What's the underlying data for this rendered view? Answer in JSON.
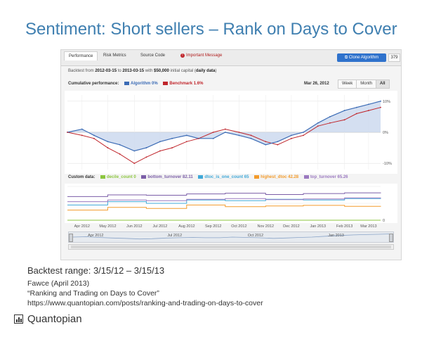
{
  "slide": {
    "title": "Sentiment: Short sellers – Rank on Days to Cover",
    "captions": [
      "Backtest range: 3/15/12 – 3/15/13",
      "Fawce (April 2013)",
      "“Ranking and Trading on Days to Cover”",
      "https://www.quantopian.com/posts/ranking-and-trading-on-days-to-cover"
    ],
    "logo_text": "Quantopian",
    "logo_icon": "bar-chart-icon"
  },
  "screenshot": {
    "tabs": [
      "Performance",
      "Risk Metrics",
      "Source Code",
      "Important Message"
    ],
    "active_tab": "Performance",
    "clone_button": "Clone Algorithm",
    "count_button": "379",
    "backtest_line": {
      "prefix": "Backtest from ",
      "start": "2012-03-15",
      "to": " to ",
      "end": "2013-03-15",
      "with": " with ",
      "capital": "$50,000",
      "capital_suffix": " initial capital (",
      "mode": "daily data",
      "close": ")"
    },
    "cumulative": {
      "label": "Cumulative performance:",
      "algorithm": "Algorithm 0%",
      "benchmark": "Benchmark 1.6%",
      "date": "Mar 26, 2012",
      "range_buttons": [
        "Week",
        "Month",
        "All"
      ],
      "selected_range": "All"
    },
    "custom": {
      "label": "Custom data:",
      "series": [
        {
          "label": "decile_count 0",
          "color": "#8cc63f"
        },
        {
          "label": "bottom_turnover 82.11",
          "color": "#7b5ea7"
        },
        {
          "label": "dtoc_is_one_count 65",
          "color": "#3fa8d8"
        },
        {
          "label": "highest_dtoc 42.28",
          "color": "#f39b2b"
        },
        {
          "label": "top_turnover 65.26",
          "color": "#9b79c0"
        }
      ]
    },
    "x_ticks": [
      "Apr 2012",
      "May 2012",
      "Jun 2012",
      "Jul 2012",
      "Aug 2012",
      "Sep 2012",
      "Oct 2012",
      "Nov 2012",
      "Dec 2012",
      "Jan 2013",
      "Feb 2013",
      "Mar 2013"
    ],
    "navigator_labels": [
      "Apr 2012",
      "Jul 2012",
      "Oct 2012",
      "Jan 2013"
    ],
    "y_ticks": [
      "10%",
      "0%",
      "-10%"
    ],
    "colors": {
      "algorithm": "#3b6bb5",
      "algorithm_fill": "#c9d7ee",
      "benchmark": "#c0262c",
      "accent": "#3f7fb0"
    }
  },
  "chart_data": [
    {
      "type": "line",
      "title": "",
      "xlabel": "",
      "ylabel": "",
      "x": [
        "2012-03-15",
        "2012-04-01",
        "2012-04-15",
        "2012-05-01",
        "2012-05-15",
        "2012-06-01",
        "2012-06-15",
        "2012-07-01",
        "2012-07-15",
        "2012-08-01",
        "2012-08-15",
        "2012-09-01",
        "2012-09-15",
        "2012-10-01",
        "2012-10-15",
        "2012-11-01",
        "2012-11-15",
        "2012-12-01",
        "2012-12-15",
        "2013-01-01",
        "2013-01-15",
        "2013-02-01",
        "2013-02-15",
        "2013-03-01",
        "2013-03-15"
      ],
      "series": [
        {
          "name": "Algorithm",
          "values": [
            0,
            1,
            -1,
            -3,
            -4,
            -6,
            -5,
            -3,
            -2,
            -1,
            -2,
            -2,
            0,
            -1,
            -2,
            -4,
            -3,
            -1,
            0,
            3,
            5,
            7,
            8,
            9,
            10
          ]
        },
        {
          "name": "Benchmark",
          "values": [
            0,
            -1,
            -2,
            -5,
            -7,
            -10,
            -8,
            -6,
            -5,
            -3,
            -2,
            0,
            1,
            0,
            -1,
            -3,
            -4,
            -2,
            -1,
            2,
            3,
            4,
            6,
            7,
            8
          ]
        }
      ],
      "ylim": [
        -12,
        12
      ],
      "y_ticks": [
        "10%",
        "0%",
        "-10%"
      ],
      "grid": true,
      "legend": "top-left"
    },
    {
      "type": "line",
      "title": "",
      "x": [
        "2012-03-15",
        "2012-05-01",
        "2012-06-15",
        "2012-08-01",
        "2012-09-15",
        "2012-11-01",
        "2012-12-15",
        "2013-02-01",
        "2013-03-15"
      ],
      "series": [
        {
          "name": "decile_count",
          "values": [
            0,
            0,
            0,
            0,
            0,
            0,
            0,
            0,
            0
          ]
        },
        {
          "name": "bottom_turnover",
          "values": [
            70,
            75,
            74,
            78,
            80,
            76,
            79,
            81,
            82
          ]
        },
        {
          "name": "dtoc_is_one_count",
          "values": [
            45,
            55,
            50,
            60,
            58,
            62,
            60,
            64,
            65
          ]
        },
        {
          "name": "highest_dtoc",
          "values": [
            30,
            38,
            35,
            45,
            40,
            42,
            44,
            41,
            42
          ]
        },
        {
          "name": "top_turnover",
          "values": [
            55,
            60,
            58,
            62,
            64,
            61,
            63,
            66,
            65
          ]
        }
      ],
      "grid": true,
      "legend": "top-left"
    }
  ]
}
